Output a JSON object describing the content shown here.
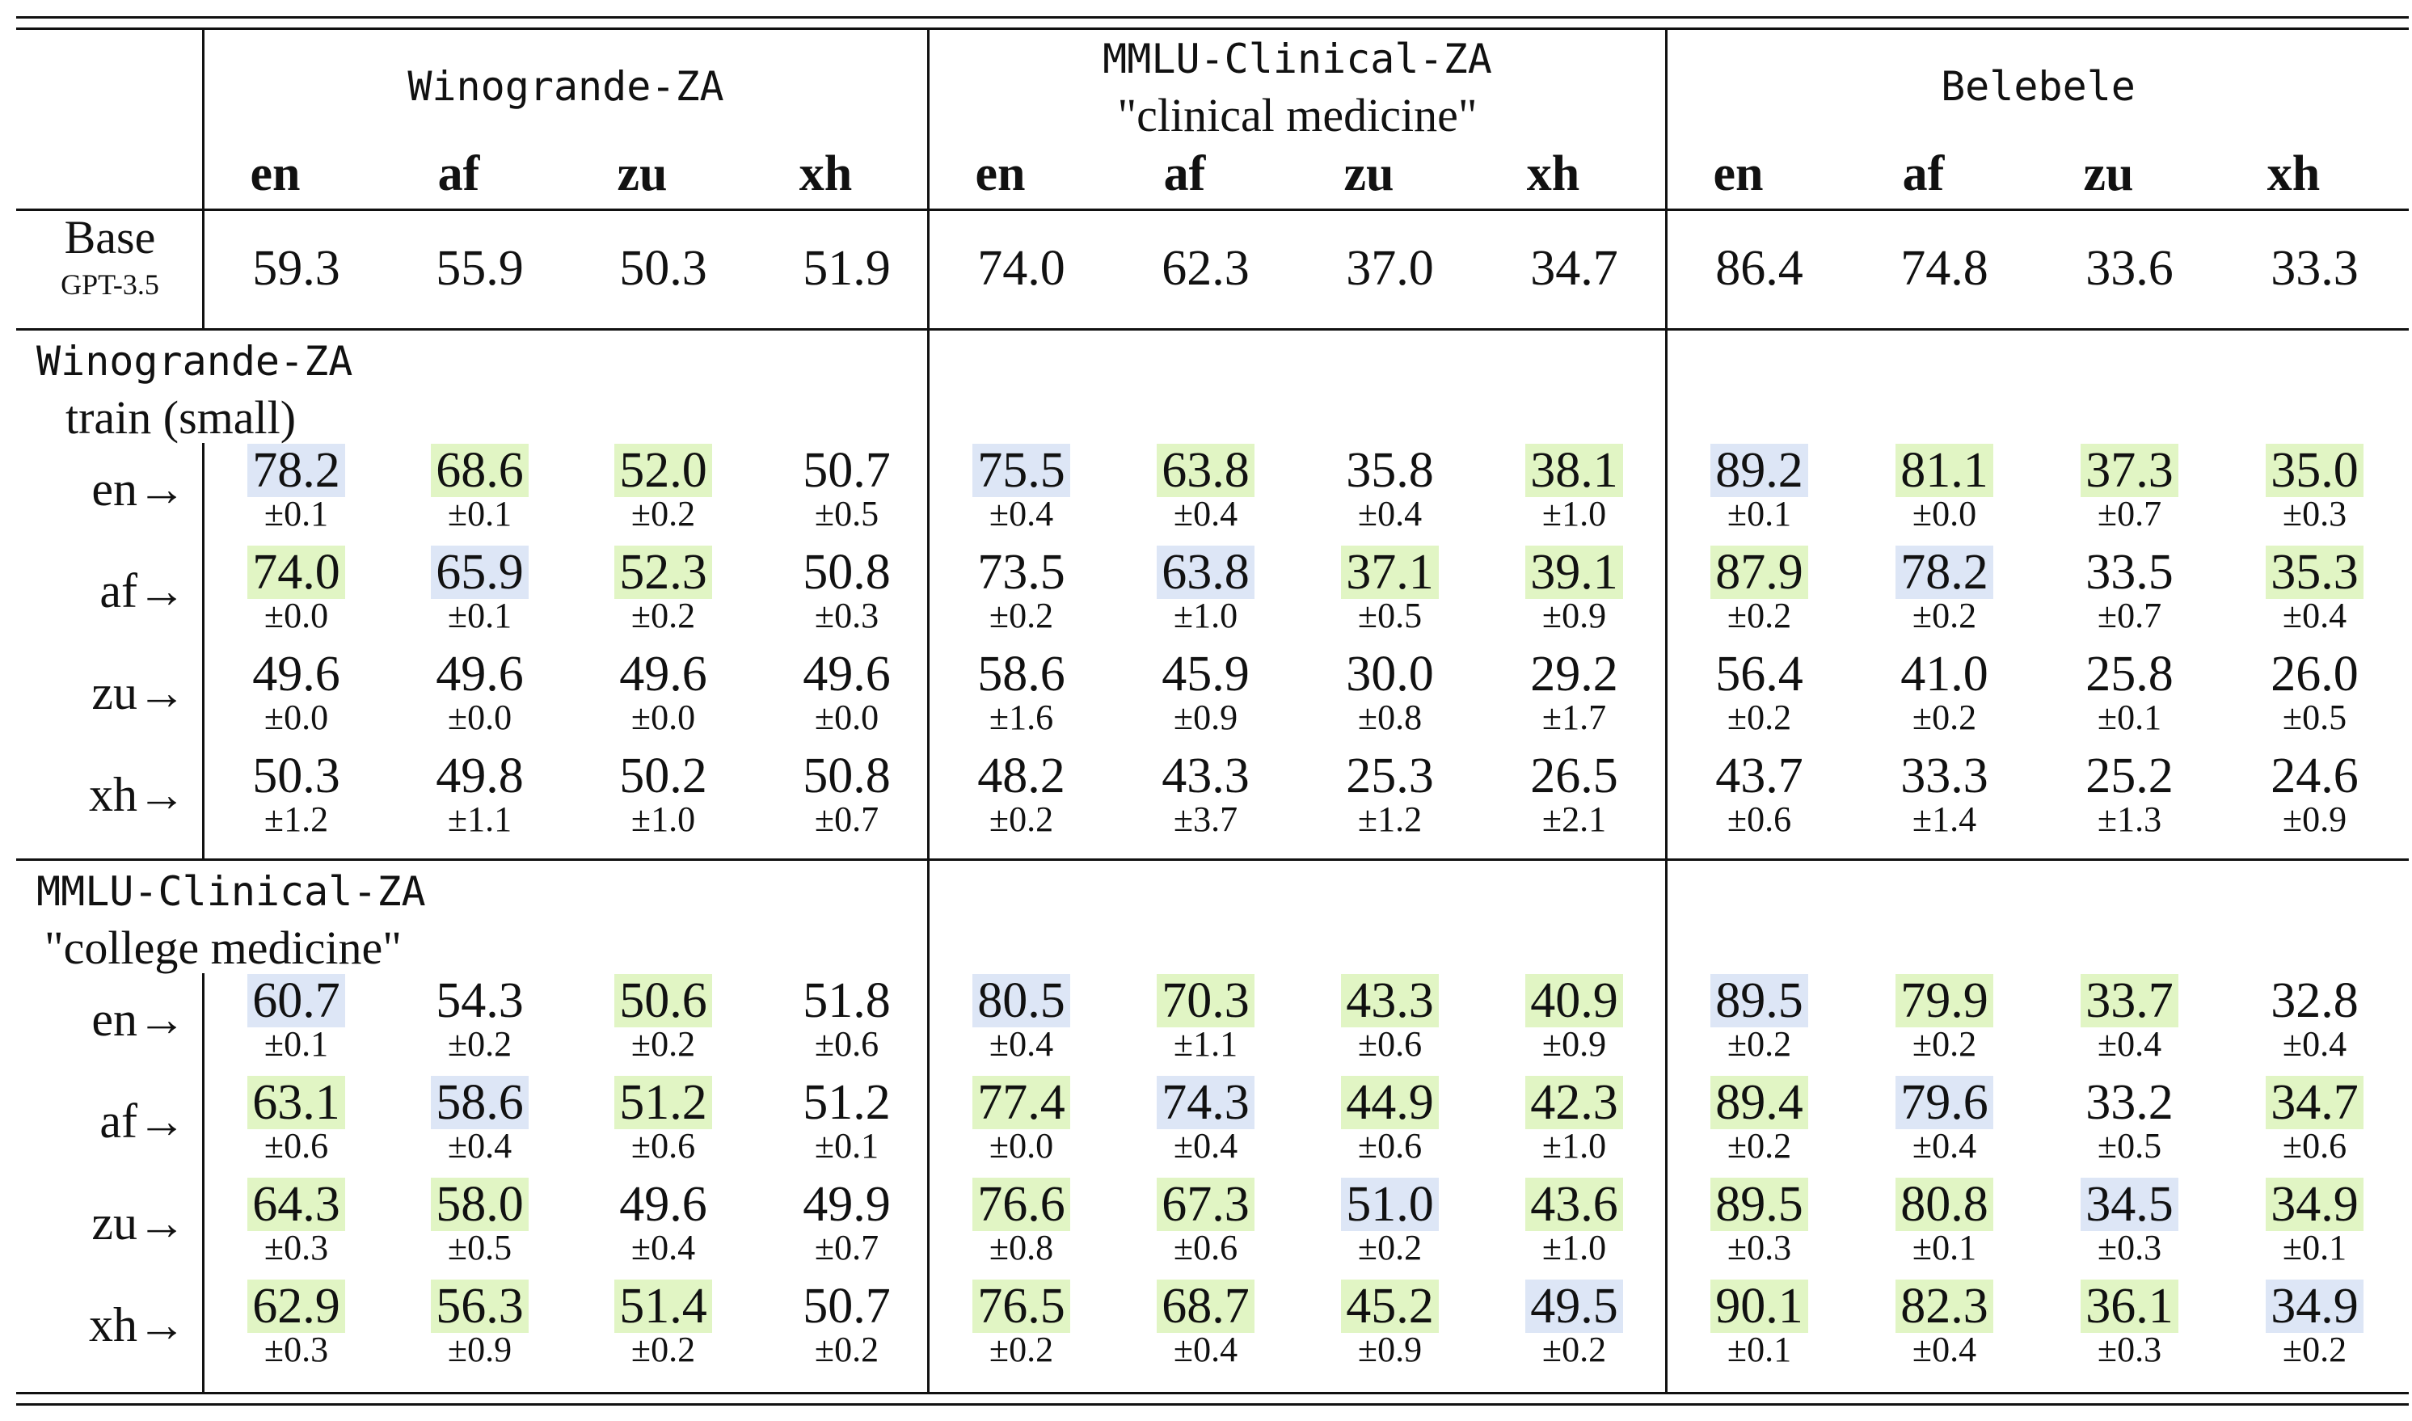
{
  "headers": {
    "groups": [
      {
        "name": "Winogrande-ZA",
        "sub": ""
      },
      {
        "name": "MMLU-Clinical-ZA",
        "sub": "\"clinical medicine\""
      },
      {
        "name": "Belebele",
        "sub": ""
      }
    ],
    "langs": [
      "en",
      "af",
      "zu",
      "xh"
    ]
  },
  "base": {
    "label": "Base",
    "sublabel": "GPT-3.5",
    "values": [
      "59.3",
      "55.9",
      "50.3",
      "51.9",
      "74.0",
      "62.3",
      "37.0",
      "34.7",
      "86.4",
      "74.8",
      "33.6",
      "33.3"
    ]
  },
  "sections": [
    {
      "name": "Winogrande-ZA",
      "sub": "train (small)",
      "rows": [
        {
          "label": "en→",
          "values": [
            "78.2",
            "68.6",
            "52.0",
            "50.7",
            "75.5",
            "63.8",
            "35.8",
            "38.1",
            "89.2",
            "81.1",
            "37.3",
            "35.0"
          ],
          "errors": [
            "±0.1",
            "±0.1",
            "±0.2",
            "±0.5",
            "±0.4",
            "±0.4",
            "±0.4",
            "±1.0",
            "±0.1",
            "±0.0",
            "±0.7",
            "±0.3"
          ],
          "highlights": [
            "blue",
            "green",
            "green",
            "",
            "blue",
            "green",
            "",
            "green",
            "blue",
            "green",
            "green",
            "green"
          ]
        },
        {
          "label": "af→",
          "values": [
            "74.0",
            "65.9",
            "52.3",
            "50.8",
            "73.5",
            "63.8",
            "37.1",
            "39.1",
            "87.9",
            "78.2",
            "33.5",
            "35.3"
          ],
          "errors": [
            "±0.0",
            "±0.1",
            "±0.2",
            "±0.3",
            "±0.2",
            "±1.0",
            "±0.5",
            "±0.9",
            "±0.2",
            "±0.2",
            "±0.7",
            "±0.4"
          ],
          "highlights": [
            "green",
            "blue",
            "green",
            "",
            "",
            "blue",
            "green",
            "green",
            "green",
            "blue",
            "",
            "green"
          ]
        },
        {
          "label": "zu→",
          "values": [
            "49.6",
            "49.6",
            "49.6",
            "49.6",
            "58.6",
            "45.9",
            "30.0",
            "29.2",
            "56.4",
            "41.0",
            "25.8",
            "26.0"
          ],
          "errors": [
            "±0.0",
            "±0.0",
            "±0.0",
            "±0.0",
            "±1.6",
            "±0.9",
            "±0.8",
            "±1.7",
            "±0.2",
            "±0.2",
            "±0.1",
            "±0.5"
          ],
          "highlights": [
            "",
            "",
            "",
            "",
            "",
            "",
            "",
            "",
            "",
            "",
            "",
            ""
          ]
        },
        {
          "label": "xh→",
          "values": [
            "50.3",
            "49.8",
            "50.2",
            "50.8",
            "48.2",
            "43.3",
            "25.3",
            "26.5",
            "43.7",
            "33.3",
            "25.2",
            "24.6"
          ],
          "errors": [
            "±1.2",
            "±1.1",
            "±1.0",
            "±0.7",
            "±0.2",
            "±3.7",
            "±1.2",
            "±2.1",
            "±0.6",
            "±1.4",
            "±1.3",
            "±0.9"
          ],
          "highlights": [
            "",
            "",
            "",
            "",
            "",
            "",
            "",
            "",
            "",
            "",
            "",
            ""
          ]
        }
      ]
    },
    {
      "name": "MMLU-Clinical-ZA",
      "sub": "\"college medicine\"",
      "rows": [
        {
          "label": "en→",
          "values": [
            "60.7",
            "54.3",
            "50.6",
            "51.8",
            "80.5",
            "70.3",
            "43.3",
            "40.9",
            "89.5",
            "79.9",
            "33.7",
            "32.8"
          ],
          "errors": [
            "±0.1",
            "±0.2",
            "±0.2",
            "±0.6",
            "±0.4",
            "±1.1",
            "±0.6",
            "±0.9",
            "±0.2",
            "±0.2",
            "±0.4",
            "±0.4"
          ],
          "highlights": [
            "blue",
            "",
            "green",
            "",
            "blue",
            "green",
            "green",
            "green",
            "blue",
            "green",
            "green",
            ""
          ]
        },
        {
          "label": "af→",
          "values": [
            "63.1",
            "58.6",
            "51.2",
            "51.2",
            "77.4",
            "74.3",
            "44.9",
            "42.3",
            "89.4",
            "79.6",
            "33.2",
            "34.7"
          ],
          "errors": [
            "±0.6",
            "±0.4",
            "±0.6",
            "±0.1",
            "±0.0",
            "±0.4",
            "±0.6",
            "±1.0",
            "±0.2",
            "±0.4",
            "±0.5",
            "±0.6"
          ],
          "highlights": [
            "green",
            "blue",
            "green",
            "",
            "green",
            "blue",
            "green",
            "green",
            "green",
            "blue",
            "",
            "green"
          ]
        },
        {
          "label": "zu→",
          "values": [
            "64.3",
            "58.0",
            "49.6",
            "49.9",
            "76.6",
            "67.3",
            "51.0",
            "43.6",
            "89.5",
            "80.8",
            "34.5",
            "34.9"
          ],
          "errors": [
            "±0.3",
            "±0.5",
            "±0.4",
            "±0.7",
            "±0.8",
            "±0.6",
            "±0.2",
            "±1.0",
            "±0.3",
            "±0.1",
            "±0.3",
            "±0.1"
          ],
          "highlights": [
            "green",
            "green",
            "",
            "",
            "green",
            "green",
            "blue",
            "green",
            "green",
            "green",
            "blue",
            "green"
          ]
        },
        {
          "label": "xh→",
          "values": [
            "62.9",
            "56.3",
            "51.4",
            "50.7",
            "76.5",
            "68.7",
            "45.2",
            "49.5",
            "90.1",
            "82.3",
            "36.1",
            "34.9"
          ],
          "errors": [
            "±0.3",
            "±0.9",
            "±0.2",
            "±0.2",
            "±0.2",
            "±0.4",
            "±0.9",
            "±0.2",
            "±0.1",
            "±0.4",
            "±0.3",
            "±0.2"
          ],
          "highlights": [
            "green",
            "green",
            "green",
            "",
            "green",
            "green",
            "green",
            "blue",
            "green",
            "green",
            "green",
            "blue"
          ]
        }
      ]
    }
  ],
  "colors": {
    "blue": "#dde6f6",
    "green": "#e1f5c4"
  }
}
